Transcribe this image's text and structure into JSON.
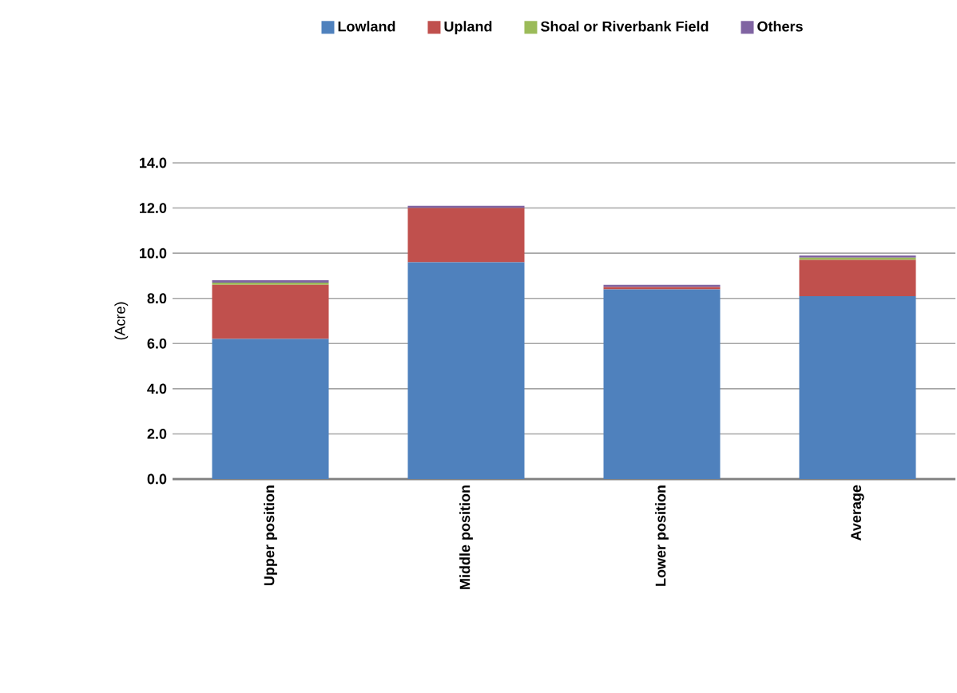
{
  "chart_data": {
    "type": "bar",
    "stacked": true,
    "ylabel": "(Acre)",
    "categories": [
      "Upper position",
      "Middle position",
      "Lower position",
      "Average"
    ],
    "series": [
      {
        "name": "Lowland",
        "color": "#4f81bd",
        "values": [
          6.2,
          9.6,
          8.4,
          8.1
        ]
      },
      {
        "name": "Upland",
        "color": "#c0504d",
        "values": [
          2.4,
          2.4,
          0.1,
          1.6
        ]
      },
      {
        "name": "Shoal or Riverbank Field",
        "color": "#9bbb59",
        "values": [
          0.1,
          0.0,
          0.0,
          0.1
        ]
      },
      {
        "name": "Others",
        "color": "#8064a2",
        "values": [
          0.1,
          0.1,
          0.1,
          0.1
        ]
      }
    ],
    "ylim": [
      0,
      14
    ],
    "yticks": [
      {
        "value": 0,
        "label": "0.0"
      },
      {
        "value": 2,
        "label": "2.0"
      },
      {
        "value": 4,
        "label": "4.0"
      },
      {
        "value": 6,
        "label": "6.0"
      },
      {
        "value": 8,
        "label": "8.0"
      },
      {
        "value": 10,
        "label": "10.0"
      },
      {
        "value": 12,
        "label": "12.0"
      },
      {
        "value": 14,
        "label": "14.0"
      }
    ],
    "grid": "y",
    "legend": "top"
  }
}
